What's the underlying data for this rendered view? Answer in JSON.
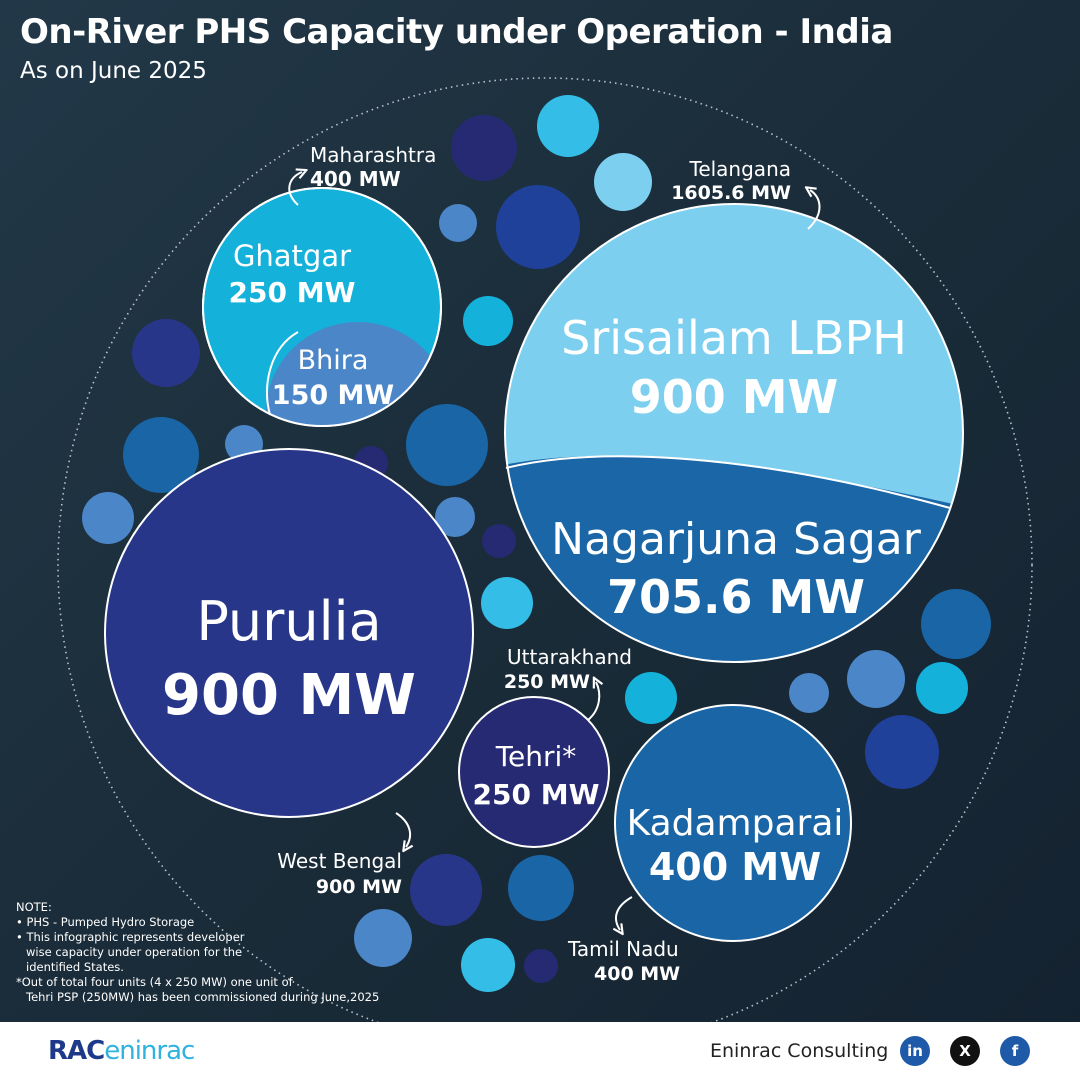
{
  "header": {
    "title": "On-River PHS Capacity under Operation - India",
    "subtitle": "As on June 2025"
  },
  "chart_data": {
    "type": "bubble",
    "unit": "MW",
    "groups": [
      {
        "state": "Maharashtra",
        "total_label": "400 MW",
        "total": 400,
        "projects": [
          {
            "name": "Ghatgar",
            "label": "250 MW",
            "value": 250
          },
          {
            "name": "Bhira",
            "label": "150 MW",
            "value": 150
          }
        ]
      },
      {
        "state": "Telangana",
        "total_label": "1605.6 MW",
        "total": 1605.6,
        "projects": [
          {
            "name": "Srisailam LBPH",
            "label": "900 MW",
            "value": 900
          },
          {
            "name": "Nagarjuna Sagar",
            "label": "705.6 MW",
            "value": 705.6
          }
        ]
      },
      {
        "state": "West Bengal",
        "total_label": "900 MW",
        "total": 900,
        "projects": [
          {
            "name": "Purulia",
            "label": "900 MW",
            "value": 900
          }
        ]
      },
      {
        "state": "Uttarakhand",
        "total_label": "250 MW",
        "total": 250,
        "projects": [
          {
            "name": "Tehri*",
            "label": "250 MW",
            "value": 250
          }
        ]
      },
      {
        "state": "Tamil Nadu",
        "total_label": "400 MW",
        "total": 400,
        "projects": [
          {
            "name": "Kadamparai",
            "label": "400 MW",
            "value": 400
          }
        ]
      }
    ],
    "colors": {
      "ghatgar": "#14b1da",
      "bhira": "#4b86c8",
      "srisailam": "#7dcff0",
      "nagarjuna": "#1a66a6",
      "purulia": "#28368a",
      "tehri": "#262a72",
      "kadamparai": "#1a65a6"
    }
  },
  "notes": {
    "heading": "NOTE:",
    "items": [
      "• PHS - Pumped Hydro Storage",
      "• This infographic represents developer",
      "wise capacity under operation for the",
      "identified States.",
      "*Out of total four units (4 x 250 MW) one unit of",
      "Tehri PSP (250MW) has been commissioned during June,2025"
    ]
  },
  "footer": {
    "logo_left": "RAC",
    "logo_right": "eninrac",
    "company": "Eninrac Consulting",
    "social": [
      {
        "name": "linkedin-icon",
        "glyph": "in",
        "color": "#1e5aa8"
      },
      {
        "name": "x-icon",
        "glyph": "X",
        "color": "#111111"
      },
      {
        "name": "facebook-icon",
        "glyph": "f",
        "color": "#1e5aa8"
      }
    ]
  }
}
